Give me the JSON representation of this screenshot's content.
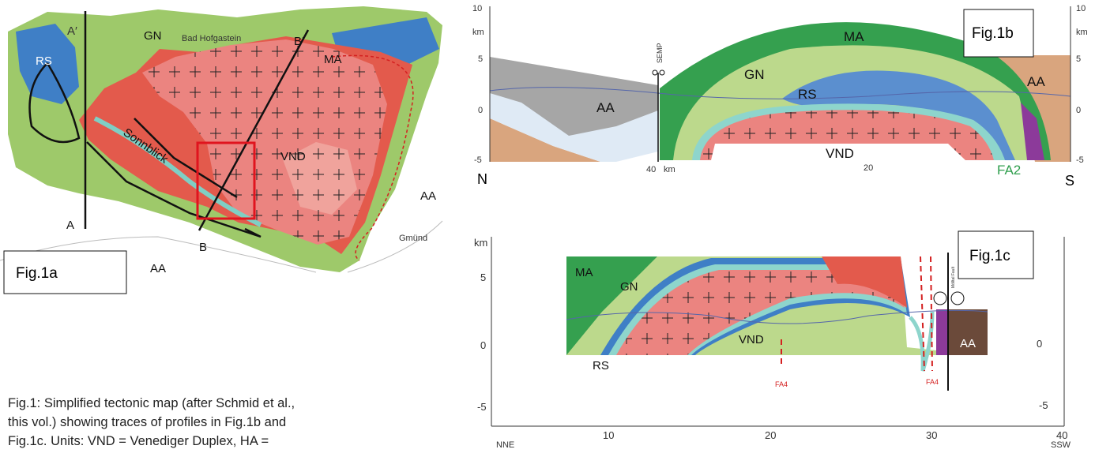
{
  "fig1a": {
    "label": "Fig.1a",
    "map": {
      "a_prime": "A′",
      "gn": "GN",
      "town1": "Bad Hofgastein",
      "b_prime": "B′",
      "ma": "MA",
      "rs": "RS",
      "sonnblick": "Sonnblick",
      "vnd": "VND",
      "aa_right": "AA",
      "aa_bottom": "AA",
      "a": "A",
      "b": "B",
      "town2": "Gmünd"
    }
  },
  "caption": {
    "lines": [
      "Fig.1: Simplified tectonic map (after Schmid et al.,",
      "this vol.) showing traces of profiles in Fig.1b and",
      "Fig.1c. Units: VND = Venediger Duplex, HA ="
    ]
  },
  "fig1b": {
    "label": "Fig.1b",
    "left_axis": [
      "10",
      "km",
      "5",
      "0",
      "-5"
    ],
    "right_axis": [
      "10",
      "km",
      "5",
      "0",
      "-5"
    ],
    "bottom": {
      "north": "N",
      "km40": "40",
      "km": "km",
      "km20": "20",
      "fa2": "FA2",
      "south": "S"
    },
    "units": {
      "semp": "SEMP",
      "ma": "MA",
      "gn": "GN",
      "rs": "RS",
      "aa_left": "AA",
      "aa_right": "AA",
      "vnd": "VND"
    }
  },
  "fig1c": {
    "label": "Fig.1c",
    "left_axis": [
      "km",
      "5",
      "0",
      "-5"
    ],
    "right_axis": [
      "0",
      "-5"
    ],
    "bottom_axis": [
      "10",
      "20",
      "30",
      "40"
    ],
    "nne": "NNE",
    "ssw": "SSW",
    "units": {
      "ma": "MA",
      "gn": "GN",
      "rs": "RS",
      "vnd": "VND",
      "aa": "AA",
      "fa4_left": "FA4",
      "fa4_right": "FA4",
      "fault": "Mölltal Fault"
    }
  }
}
